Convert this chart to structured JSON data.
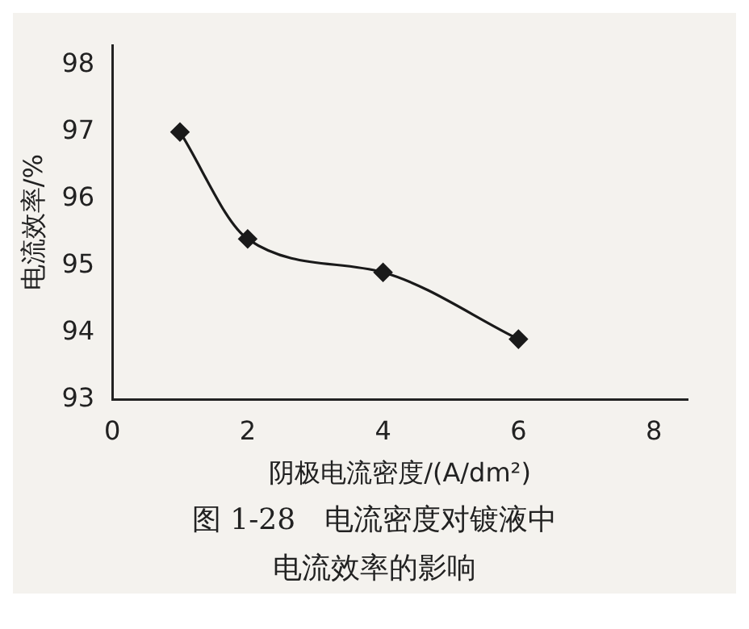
{
  "chart_data": {
    "type": "line",
    "xlabel": "阴极电流密度/(A/dm²)",
    "ylabel": "电流效率/%",
    "x": [
      1,
      2,
      4,
      6
    ],
    "series": [
      {
        "color": "#1a1a1a",
        "values": [
          97,
          95.4,
          94.9,
          93.9
        ]
      }
    ],
    "xlim": [
      0,
      8.5
    ],
    "xticks": [
      0,
      2,
      4,
      6,
      8
    ],
    "ylim": [
      93,
      98.3
    ],
    "yticks": [
      93,
      94,
      95,
      96,
      97,
      98
    ],
    "grid": false,
    "legend": false,
    "marker": "diamond",
    "line_style": "solid",
    "annotations": [
      "图 1-28　电流密度对镀液中",
      "电流效率的影响"
    ]
  }
}
